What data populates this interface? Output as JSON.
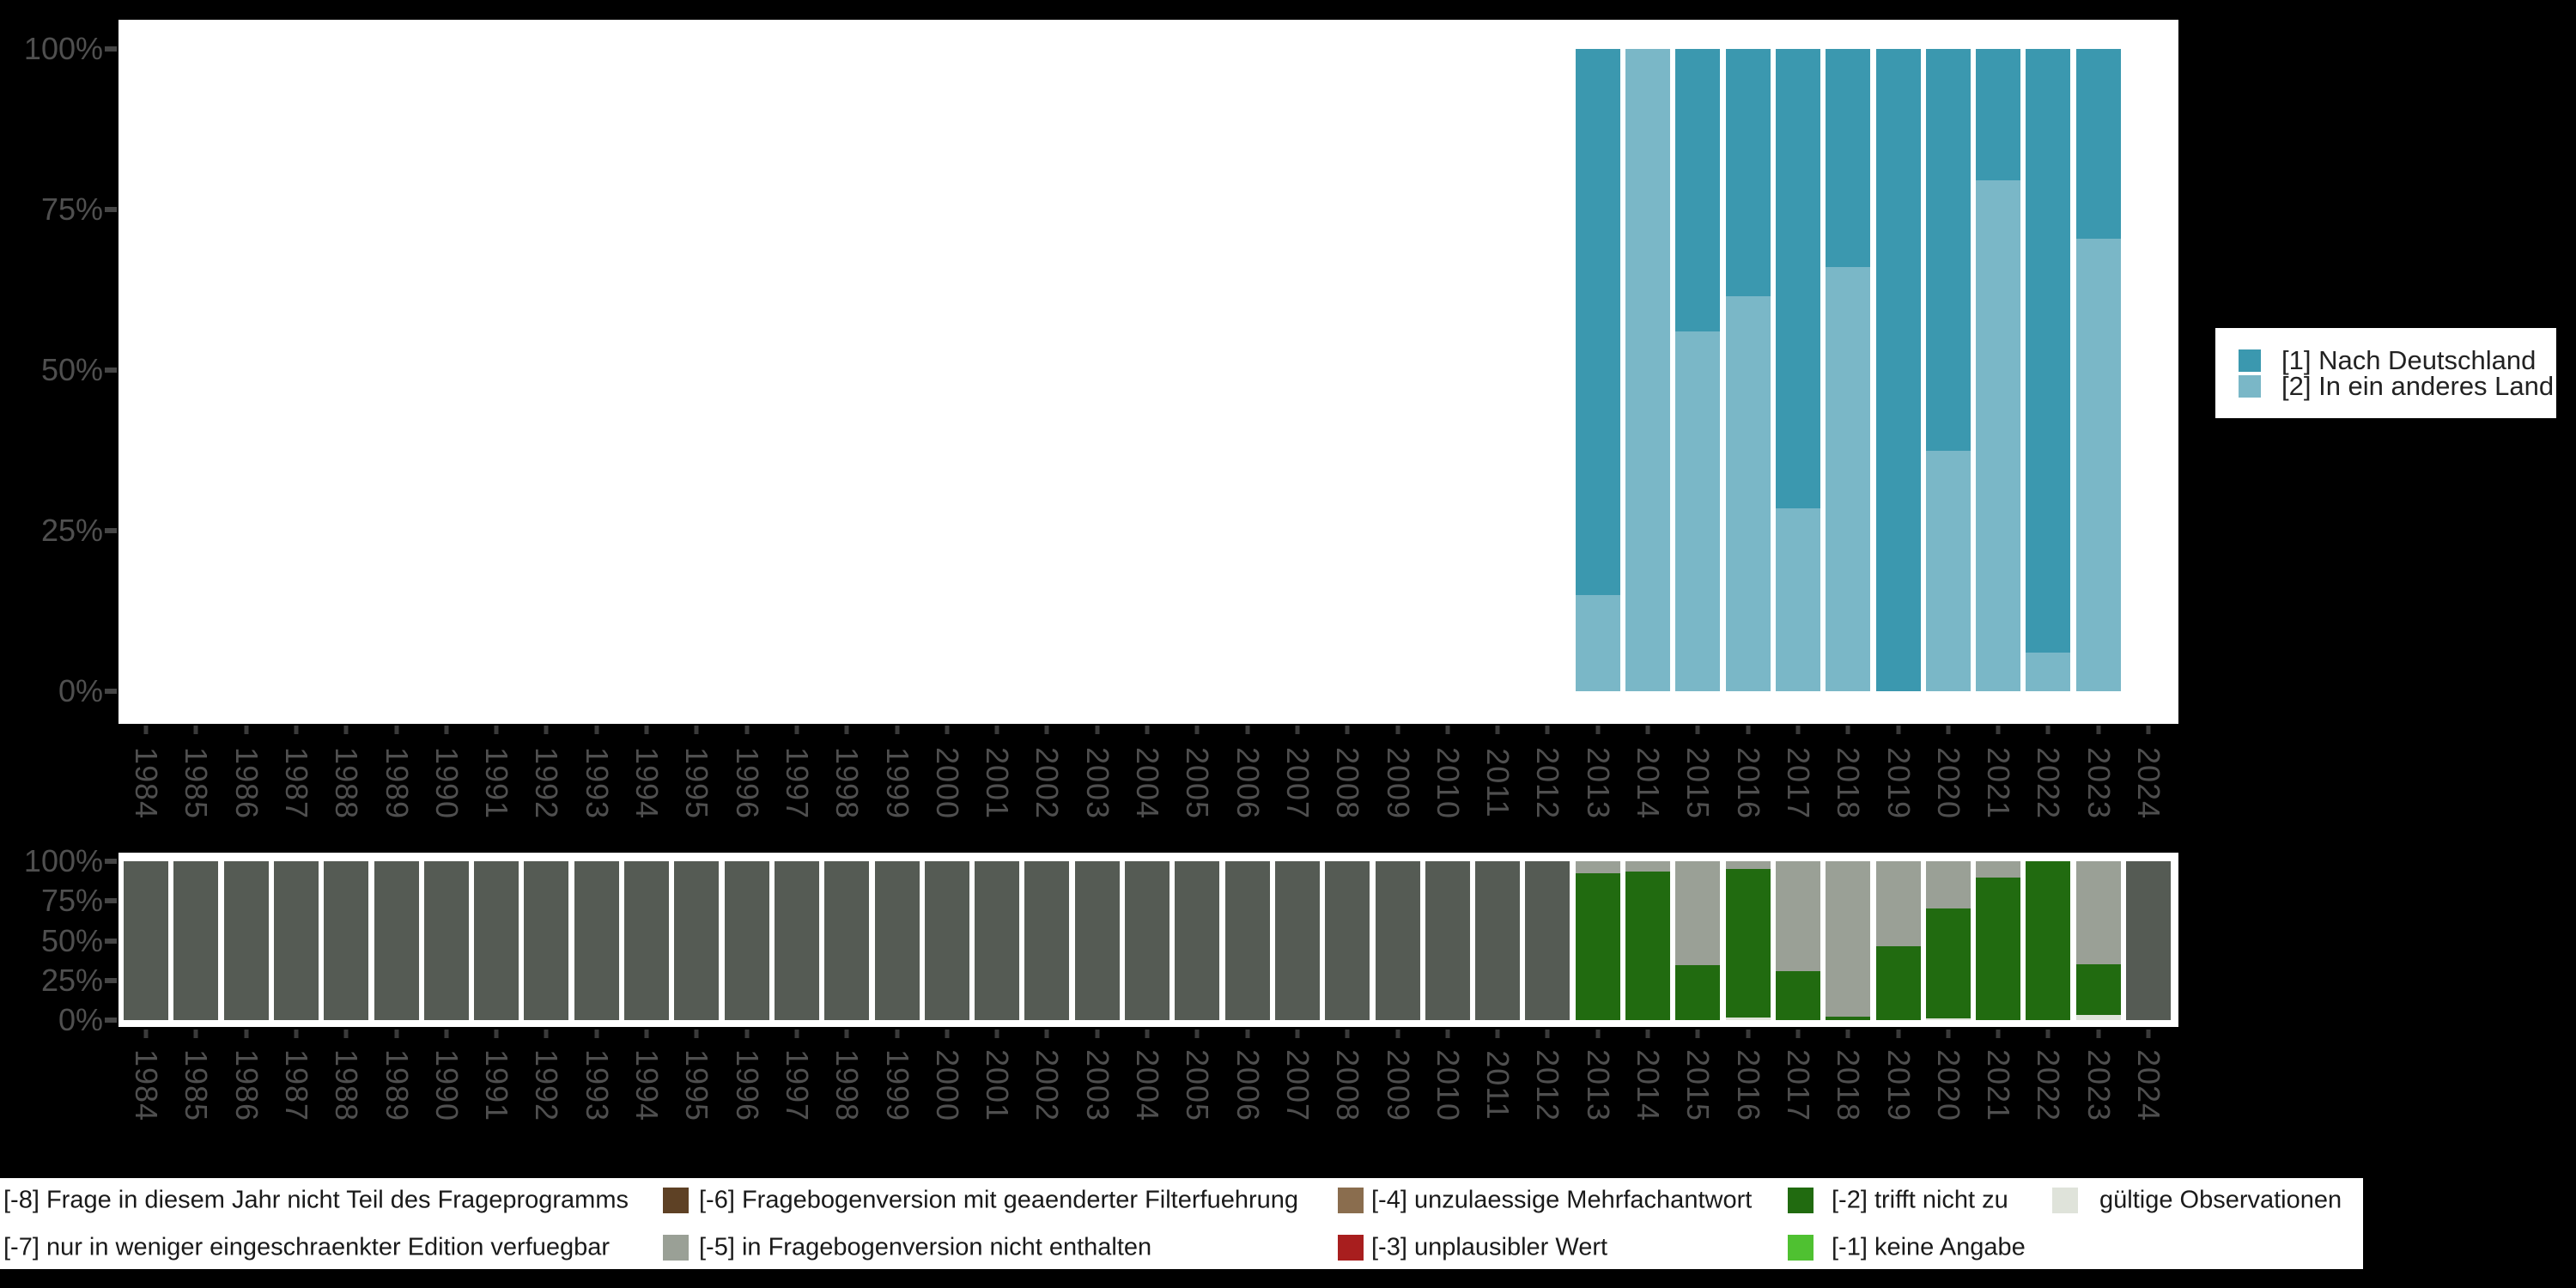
{
  "colors": {
    "background": "#000000",
    "plot_background": "#ffffff",
    "axis_label": "#4f4f4f",
    "axis_tick": "#3a3a3a",
    "legend_text": "#1a1a1a",
    "nach_deutschland": "#3b98af",
    "in_ein_anderes_land": "#7ab7c7",
    "trifft_nicht_zu": "#216b10",
    "nicht_enthalten_gray": "#9aa096",
    "nicht_teil_frageprogramm_gray": "#555b54",
    "gueltige_observationen": "#dfe3da",
    "filterfuehrung_brown": "#5e4125",
    "mehrfachantwort_tan": "#8a6d4e",
    "unplausibler_wert_red": "#a81e1e",
    "keine_angabe_green": "#4fc131"
  },
  "series_legend": {
    "items": [
      {
        "label": "[1] Nach Deutschland",
        "color": "#3b98af"
      },
      {
        "label": "[2] In ein anderes Land",
        "color": "#7ab7c7"
      }
    ]
  },
  "chart_data": [
    {
      "type": "bar",
      "stacked": true,
      "title": "",
      "xlabel": "",
      "ylabel": "",
      "ylim": [
        0,
        100
      ],
      "yticks": [
        "100%",
        "75%",
        "50%",
        "25%",
        "0%"
      ],
      "grid": false,
      "legend_position": "right",
      "categories": [
        "1984",
        "1985",
        "1986",
        "1987",
        "1988",
        "1989",
        "1990",
        "1991",
        "1992",
        "1993",
        "1994",
        "1995",
        "1996",
        "1997",
        "1998",
        "1999",
        "2000",
        "2001",
        "2002",
        "2003",
        "2004",
        "2005",
        "2006",
        "2007",
        "2008",
        "2009",
        "2010",
        "2011",
        "2012",
        "2013",
        "2014",
        "2015",
        "2016",
        "2017",
        "2018",
        "2019",
        "2020",
        "2021",
        "2022",
        "2023",
        "2024"
      ],
      "stack_bottom_to_top": [
        1,
        0
      ],
      "series": [
        {
          "name": "[1] Nach Deutschland",
          "color": "#3b98af",
          "values": {
            "2013": 85,
            "2015": 44,
            "2016": 38.5,
            "2017": 71.5,
            "2018": 34,
            "2019": 100,
            "2020": 62.5,
            "2021": 20.5,
            "2022": 94,
            "2023": 29.5
          }
        },
        {
          "name": "[2] In ein anderes Land",
          "color": "#7ab7c7",
          "values": {
            "2013": 15,
            "2014": 100,
            "2015": 56,
            "2016": 61.5,
            "2017": 28.5,
            "2018": 66,
            "2020": 37.5,
            "2021": 79.5,
            "2022": 6,
            "2023": 70.5
          }
        }
      ]
    },
    {
      "type": "bar",
      "stacked": true,
      "title": "",
      "xlabel": "",
      "ylabel": "",
      "ylim": [
        0,
        100
      ],
      "yticks": [
        "100%",
        "75%",
        "50%",
        "25%",
        "0%"
      ],
      "grid": false,
      "legend_position": "bottom",
      "categories": [
        "1984",
        "1985",
        "1986",
        "1987",
        "1988",
        "1989",
        "1990",
        "1991",
        "1992",
        "1993",
        "1994",
        "1995",
        "1996",
        "1997",
        "1998",
        "1999",
        "2000",
        "2001",
        "2002",
        "2003",
        "2004",
        "2005",
        "2006",
        "2007",
        "2008",
        "2009",
        "2010",
        "2011",
        "2012",
        "2013",
        "2014",
        "2015",
        "2016",
        "2017",
        "2018",
        "2019",
        "2020",
        "2021",
        "2022",
        "2023",
        "2024"
      ],
      "stack_bottom_to_top": [
        0,
        1,
        2,
        3
      ],
      "series": [
        {
          "name": "gültige Observationen",
          "color": "#dfe3da",
          "values": {
            "2016": 1.5,
            "2020": 1,
            "2023": 3
          }
        },
        {
          "name": "[-2] trifft nicht zu",
          "color": "#216b10",
          "values": {
            "2013": 92.5,
            "2014": 93.5,
            "2015": 34.5,
            "2016": 93.5,
            "2017": 31,
            "2018": 2,
            "2019": 46.5,
            "2020": 69.5,
            "2021": 90,
            "2022": 100,
            "2023": 32
          }
        },
        {
          "name": "[-5] in Fragebogenversion nicht enthalten",
          "color": "#9aa096",
          "values": {
            "2013": 7.5,
            "2014": 6.5,
            "2015": 65.5,
            "2016": 5,
            "2017": 69,
            "2018": 98,
            "2019": 53.5,
            "2020": 29.5,
            "2021": 10,
            "2023": 65
          }
        },
        {
          "name": "[-8] Frage in diesem Jahr nicht Teil des Frageprogramms",
          "color": "#555b54",
          "values": {
            "1984": 100,
            "1985": 100,
            "1986": 100,
            "1987": 100,
            "1988": 100,
            "1989": 100,
            "1990": 100,
            "1991": 100,
            "1992": 100,
            "1993": 100,
            "1994": 100,
            "1995": 100,
            "1996": 100,
            "1997": 100,
            "1998": 100,
            "1999": 100,
            "2000": 100,
            "2001": 100,
            "2002": 100,
            "2003": 100,
            "2004": 100,
            "2005": 100,
            "2006": 100,
            "2007": 100,
            "2008": 100,
            "2009": 100,
            "2010": 100,
            "2011": 100,
            "2012": 100,
            "2024": 100
          }
        }
      ]
    }
  ],
  "missing_legend": {
    "rows": [
      {
        "items": [
          {
            "label": "[-8] Frage in diesem Jahr nicht Teil des Frageprogramms",
            "swatch": null
          },
          {
            "label": "[-6] Fragebogenversion mit geaenderter Filterfuehrung",
            "swatch": "#5e4125"
          },
          {
            "label": "[-4] unzulaessige Mehrfachantwort",
            "swatch": "#8a6d4e"
          },
          {
            "label": "[-2] trifft nicht zu",
            "swatch": "#216b10"
          },
          {
            "label": "gültige Observationen",
            "swatch": "#dfe3da"
          }
        ]
      },
      {
        "items": [
          {
            "label": "[-7] nur in weniger eingeschraenkter Edition verfuegbar",
            "swatch": null
          },
          {
            "label": "[-5] in Fragebogenversion nicht enthalten",
            "swatch": "#9aa096"
          },
          {
            "label": "[-3] unplausibler Wert",
            "swatch": "#a81e1e"
          },
          {
            "label": "[-1] keine Angabe",
            "swatch": "#4fc131"
          }
        ]
      }
    ]
  }
}
